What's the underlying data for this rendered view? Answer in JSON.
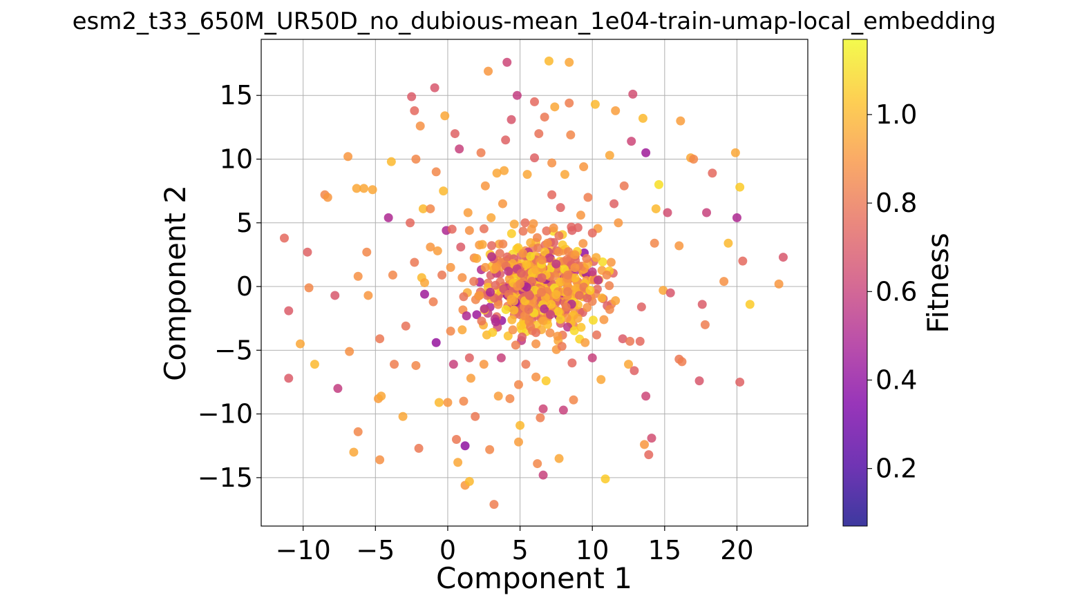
{
  "chart_data": {
    "type": "scatter",
    "title": "esm2_t33_650M_UR50D_no_dubious-mean_1e04-train-umap-local_embedding",
    "xlabel": "Component 1",
    "ylabel": "Component 2",
    "xlim": [
      -12.9,
      24.9
    ],
    "ylim": [
      -18.8,
      19.4
    ],
    "xticks": [
      -10,
      -5,
      0,
      5,
      10,
      15,
      20
    ],
    "xtick_labels": [
      "−10",
      "−5",
      "0",
      "5",
      "10",
      "15",
      "20"
    ],
    "yticks": [
      -15,
      -10,
      -5,
      0,
      5,
      10,
      15
    ],
    "ytick_labels": [
      "−15",
      "−10",
      "−5",
      "0",
      "5",
      "10",
      "15"
    ],
    "grid": true,
    "colorbar": {
      "label": "Fitness",
      "colormap": "plasma",
      "range": [
        0.07,
        1.17
      ],
      "ticks": [
        0.2,
        0.4,
        0.6,
        0.8,
        1.0
      ],
      "tick_labels": [
        "0.2",
        "0.4",
        "0.6",
        "0.8",
        "1.0"
      ]
    },
    "points_note": "",
    "points": [
      [
        -11.3,
        3.8,
        0.75
      ],
      [
        -11.0,
        -1.9,
        0.7
      ],
      [
        -11.0,
        -7.2,
        0.7
      ],
      [
        -9.7,
        2.7,
        0.72
      ],
      [
        -9.6,
        -0.1,
        0.85
      ],
      [
        -10.2,
        -4.5,
        0.95
      ],
      [
        -9.2,
        -6.1,
        1.0
      ],
      [
        -8.5,
        7.2,
        0.85
      ],
      [
        -8.3,
        7.0,
        0.9
      ],
      [
        -7.8,
        -0.7,
        0.68
      ],
      [
        -7.6,
        -8.0,
        0.58
      ],
      [
        -6.9,
        10.2,
        0.9
      ],
      [
        -6.8,
        -5.1,
        0.88
      ],
      [
        -6.5,
        -13.0,
        0.95
      ],
      [
        -6.3,
        7.7,
        0.95
      ],
      [
        -6.2,
        0.8,
        0.88
      ],
      [
        -6.2,
        -11.4,
        0.85
      ],
      [
        -5.8,
        7.7,
        0.95
      ],
      [
        -5.6,
        2.7,
        0.85
      ],
      [
        -5.5,
        -0.7,
        0.9
      ],
      [
        -5.2,
        7.6,
        0.95
      ],
      [
        -4.8,
        -8.8,
        0.92
      ],
      [
        -4.7,
        -4.1,
        0.8
      ],
      [
        -4.7,
        -13.6,
        0.88
      ],
      [
        -4.6,
        -8.6,
        0.95
      ],
      [
        -4.1,
        5.4,
        0.5
      ],
      [
        -3.9,
        9.8,
        1.0
      ],
      [
        -3.8,
        0.9,
        0.85
      ],
      [
        -3.7,
        -6.1,
        0.82
      ],
      [
        -3.1,
        -10.2,
        0.95
      ],
      [
        -2.9,
        -3.1,
        0.78
      ],
      [
        -2.6,
        5.0,
        0.75
      ],
      [
        -2.5,
        14.9,
        0.7
      ],
      [
        -2.3,
        1.9,
        0.8
      ],
      [
        -2.3,
        13.8,
        0.75
      ],
      [
        -2.2,
        10.0,
        0.85
      ],
      [
        -2.2,
        -6.2,
        0.85
      ],
      [
        -2.0,
        -12.7,
        0.8
      ],
      [
        -1.9,
        12.6,
        0.88
      ],
      [
        -1.8,
        0.7,
        1.0
      ],
      [
        -1.7,
        6.1,
        1.0
      ],
      [
        -1.6,
        0.3,
        0.95
      ],
      [
        -1.6,
        -0.6,
        0.45
      ],
      [
        -1.2,
        3.1,
        0.9
      ],
      [
        -1.2,
        6.1,
        0.85
      ],
      [
        -1.0,
        -1.2,
        0.82
      ],
      [
        -0.9,
        15.6,
        0.68
      ],
      [
        -0.8,
        9.0,
        0.85
      ],
      [
        -0.8,
        -4.4,
        0.42
      ],
      [
        -0.7,
        2.8,
        0.92
      ],
      [
        -0.6,
        -9.1,
        1.0
      ],
      [
        -0.4,
        0.9,
        0.8
      ],
      [
        -0.3,
        7.5,
        1.0
      ],
      [
        -0.2,
        13.4,
        0.95
      ],
      [
        -0.1,
        4.4,
        0.5
      ],
      [
        0.0,
        -9.1,
        0.9
      ],
      [
        0.2,
        1.5,
        0.9
      ],
      [
        0.2,
        -3.5,
        0.85
      ],
      [
        0.3,
        4.5,
        0.75
      ],
      [
        0.4,
        -6.1,
        0.6
      ],
      [
        0.5,
        12.0,
        0.72
      ],
      [
        0.6,
        -12.0,
        0.8
      ],
      [
        0.7,
        -13.8,
        0.95
      ],
      [
        0.8,
        10.8,
        0.6
      ],
      [
        0.9,
        3.1,
        0.7
      ],
      [
        1.0,
        -3.4,
        0.95
      ],
      [
        1.0,
        0.7,
        0.88
      ],
      [
        1.1,
        -9.0,
        0.85
      ],
      [
        1.2,
        -12.5,
        0.4
      ],
      [
        1.2,
        -15.6,
        0.9
      ],
      [
        1.3,
        -2.3,
        0.5
      ],
      [
        1.4,
        5.8,
        0.92
      ],
      [
        1.5,
        4.4,
        0.88
      ],
      [
        1.5,
        -5.6,
        0.72
      ],
      [
        1.5,
        -15.3,
        1.0
      ],
      [
        1.6,
        -7.2,
        0.92
      ],
      [
        1.8,
        0.4,
        0.8
      ],
      [
        1.9,
        -10.2,
        0.8
      ],
      [
        2.0,
        2.2,
        0.95
      ],
      [
        2.2,
        -0.7,
        0.9
      ],
      [
        2.3,
        10.5,
        0.82
      ],
      [
        2.4,
        3.3,
        0.95
      ],
      [
        2.6,
        7.9,
        0.9
      ],
      [
        2.7,
        -3.8,
        1.0
      ],
      [
        2.8,
        16.9,
        0.9
      ],
      [
        2.9,
        -12.8,
        0.85
      ],
      [
        3.0,
        5.4,
        0.95
      ],
      [
        3.2,
        -17.1,
        0.82
      ],
      [
        3.3,
        0.1,
        0.75
      ],
      [
        3.4,
        8.9,
        0.95
      ],
      [
        3.5,
        -8.6,
        0.92
      ],
      [
        3.6,
        2.6,
        0.78
      ],
      [
        3.7,
        -5.6,
        0.6
      ],
      [
        3.9,
        9.1,
        0.95
      ],
      [
        4.0,
        11.5,
        0.72
      ],
      [
        4.1,
        17.6,
        0.62
      ],
      [
        4.2,
        1.2,
        0.55
      ],
      [
        4.3,
        -8.8,
        0.85
      ],
      [
        4.4,
        13.1,
        0.68
      ],
      [
        4.5,
        -3.4,
        0.88
      ],
      [
        4.6,
        4.9,
        0.95
      ],
      [
        4.7,
        -4.6,
        0.82
      ],
      [
        4.8,
        15.0,
        0.58
      ],
      [
        4.9,
        -12.2,
        0.92
      ],
      [
        5.0,
        -10.9,
        1.0
      ],
      [
        5.0,
        0.2,
        0.85
      ],
      [
        5.2,
        2.6,
        0.9
      ],
      [
        5.4,
        -6.1,
        0.8
      ],
      [
        5.6,
        -1.8,
        0.78
      ],
      [
        5.8,
        4.5,
        0.9
      ],
      [
        6.0,
        10.1,
        0.72
      ],
      [
        6.0,
        14.5,
        0.75
      ],
      [
        6.1,
        -4.5,
        0.88
      ],
      [
        6.2,
        -13.9,
        0.85
      ],
      [
        6.3,
        12.0,
        0.78
      ],
      [
        6.4,
        -10.3,
        0.82
      ],
      [
        6.5,
        0.7,
        0.72
      ],
      [
        6.6,
        -14.8,
        0.6
      ],
      [
        6.7,
        13.3,
        0.8
      ],
      [
        6.8,
        -7.4,
        1.05
      ],
      [
        6.9,
        3.4,
        0.88
      ],
      [
        7.0,
        17.7,
        1.0
      ],
      [
        7.1,
        -2.2,
        0.6
      ],
      [
        7.2,
        7.2,
        0.75
      ],
      [
        7.4,
        14.1,
        0.95
      ],
      [
        7.6,
        -3.9,
        0.9
      ],
      [
        7.7,
        -13.5,
        0.95
      ],
      [
        7.8,
        6.2,
        0.72
      ],
      [
        8.0,
        -9.7,
        0.6
      ],
      [
        8.1,
        8.8,
        0.95
      ],
      [
        8.3,
        0.9,
        0.82
      ],
      [
        8.4,
        17.6,
        0.95
      ],
      [
        8.4,
        14.4,
        0.82
      ],
      [
        8.5,
        11.9,
        0.85
      ],
      [
        8.6,
        -6.0,
        0.75
      ],
      [
        8.8,
        2.5,
        0.9
      ],
      [
        9.0,
        -2.5,
        0.95
      ],
      [
        9.2,
        5.6,
        0.9
      ],
      [
        9.4,
        9.4,
        0.9
      ],
      [
        9.5,
        -4.4,
        0.92
      ],
      [
        9.7,
        7.0,
        0.82
      ],
      [
        10.0,
        -5.6,
        0.6
      ],
      [
        10.2,
        14.3,
        1.0
      ],
      [
        10.3,
        -3.8,
        0.78
      ],
      [
        10.4,
        0.5,
        0.55
      ],
      [
        10.6,
        -7.3,
        0.95
      ],
      [
        10.8,
        -2.6,
        0.9
      ],
      [
        10.9,
        -15.1,
        1.05
      ],
      [
        11.0,
        0.9,
        0.85
      ],
      [
        11.2,
        10.3,
        0.95
      ],
      [
        11.3,
        1.9,
        0.9
      ],
      [
        11.5,
        6.5,
        0.72
      ],
      [
        11.6,
        13.8,
        0.92
      ],
      [
        11.8,
        5.0,
        0.9
      ],
      [
        12.1,
        -4.1,
        0.7
      ],
      [
        12.2,
        7.9,
        0.8
      ],
      [
        12.5,
        -6.1,
        0.95
      ],
      [
        12.7,
        11.4,
        0.62
      ],
      [
        12.8,
        15.1,
        0.65
      ],
      [
        12.9,
        -6.6,
        0.72
      ],
      [
        13.3,
        -4.3,
        0.75
      ],
      [
        13.4,
        -1.6,
        0.72
      ],
      [
        13.5,
        13.2,
        1.0
      ],
      [
        13.6,
        -12.4,
        0.9
      ],
      [
        13.7,
        -8.6,
        0.62
      ],
      [
        13.7,
        10.5,
        0.45
      ],
      [
        13.9,
        -13.2,
        0.75
      ],
      [
        14.1,
        -11.9,
        0.65
      ],
      [
        14.3,
        3.4,
        0.85
      ],
      [
        14.4,
        6.1,
        1.0
      ],
      [
        14.6,
        8.0,
        1.1
      ],
      [
        14.9,
        -0.3,
        0.95
      ],
      [
        15.2,
        5.8,
        0.65
      ],
      [
        15.4,
        -0.5,
        0.68
      ],
      [
        16.0,
        3.2,
        0.9
      ],
      [
        16.1,
        13.0,
        0.92
      ],
      [
        16.0,
        -5.7,
        0.8
      ],
      [
        16.2,
        -5.9,
        0.82
      ],
      [
        16.8,
        10.1,
        0.95
      ],
      [
        17.0,
        10.0,
        0.85
      ],
      [
        17.4,
        -7.4,
        0.68
      ],
      [
        17.6,
        -1.4,
        0.7
      ],
      [
        17.8,
        -3.0,
        0.82
      ],
      [
        17.9,
        5.8,
        0.6
      ],
      [
        18.3,
        8.9,
        0.75
      ],
      [
        19.1,
        0.4,
        0.88
      ],
      [
        19.4,
        3.4,
        1.0
      ],
      [
        19.9,
        10.5,
        0.95
      ],
      [
        20.0,
        5.4,
        0.5
      ],
      [
        20.2,
        -7.5,
        0.72
      ],
      [
        20.2,
        7.8,
        1.05
      ],
      [
        20.4,
        2.0,
        0.75
      ],
      [
        20.9,
        -1.4,
        1.05
      ],
      [
        22.9,
        0.2,
        0.9
      ],
      [
        23.2,
        2.3,
        0.68
      ],
      [
        3.1,
        -3.6,
        1.05
      ],
      [
        6.6,
        -9.6,
        0.62
      ],
      [
        7.9,
        -4.7,
        0.8
      ],
      [
        8.7,
        -8.9,
        0.85
      ],
      [
        9.1,
        -0.7,
        0.75
      ],
      [
        4.9,
        -7.7,
        0.85
      ],
      [
        6.1,
        -7.1,
        0.88
      ],
      [
        2.5,
        -6.1,
        0.9
      ],
      [
        1.1,
        -0.8,
        0.78
      ],
      [
        3.8,
        6.5,
        0.9
      ],
      [
        5.5,
        8.8,
        0.95
      ],
      [
        7.2,
        9.7,
        0.88
      ],
      [
        8.6,
        4.4,
        0.72
      ],
      [
        10.0,
        4.2,
        0.75
      ],
      [
        11.2,
        -1.8,
        0.85
      ],
      [
        12.6,
        -4.3,
        0.8
      ],
      [
        6.6,
        -2.7,
        0.95
      ],
      [
        4.4,
        -1.0,
        0.95
      ],
      [
        2.6,
        1.5,
        0.9
      ],
      [
        9.6,
        2.2,
        0.82
      ]
    ],
    "cluster": {
      "center": [
        6.5,
        0.2
      ],
      "spread": [
        2.7,
        2.6
      ],
      "count": 520,
      "seed": 7
    }
  }
}
